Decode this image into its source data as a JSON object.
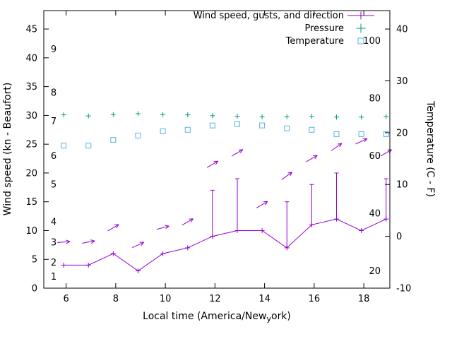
{
  "legend": {
    "wind": "Wind speed, gusts, and direction",
    "pressure": "Pressure",
    "temperature": "Temperature"
  },
  "axes": {
    "x_label_parts": [
      "Local time (America/New",
      "y",
      "ork)"
    ],
    "y_left_label": "Wind speed (kn - Beaufort)",
    "y_right_label": "Temperature (C - F)",
    "x_ticks": [
      6,
      8,
      10,
      12,
      14,
      16,
      18
    ],
    "y_left_ticks": [
      0,
      5,
      10,
      15,
      20,
      25,
      30,
      35,
      40,
      45
    ],
    "y_right_ticks_c": [
      -10,
      0,
      10,
      20,
      30,
      40
    ],
    "beaufort_labels": [
      {
        "label": "1",
        "kn": 2
      },
      {
        "label": "2",
        "kn": 4.5
      },
      {
        "label": "3",
        "kn": 8
      },
      {
        "label": "4",
        "kn": 11.5
      },
      {
        "label": "5",
        "kn": 18
      },
      {
        "label": "6",
        "kn": 23
      },
      {
        "label": "7",
        "kn": 29
      },
      {
        "label": "8",
        "kn": 34
      },
      {
        "label": "9",
        "kn": 41.5
      }
    ],
    "fahrenheit_labels": [
      {
        "label": "20",
        "kn": 3
      },
      {
        "label": "40",
        "kn": 13
      },
      {
        "label": "60",
        "kn": 23
      },
      {
        "label": "80",
        "kn": 33
      },
      {
        "label": "100",
        "kn": 43
      }
    ]
  },
  "chart_data": {
    "type": "line",
    "title": "",
    "xlabel": "Local time (America/New_york)",
    "ylabel_left": "Wind speed (kn - Beaufort)",
    "ylabel_right": "Temperature (C - F)",
    "xlim": [
      5.1,
      19.05
    ],
    "ylim_kn": [
      0,
      48.2
    ],
    "x_hours": [
      5.9,
      6.9,
      7.9,
      8.9,
      9.9,
      10.9,
      11.9,
      12.9,
      13.9,
      14.9,
      15.9,
      16.9,
      17.9,
      18.9
    ],
    "series": [
      {
        "name": "Wind speed, gusts, and direction",
        "color": "#9400d3",
        "speed_kn": [
          4,
          4,
          6,
          3,
          6,
          7,
          9,
          10,
          10,
          7,
          11,
          12,
          10,
          12
        ],
        "gust_kn": [
          4,
          4,
          6,
          3,
          6,
          7,
          17,
          19,
          10,
          15,
          18,
          20,
          10,
          19
        ]
      },
      {
        "name": "Pressure",
        "color": "#009e73",
        "values_kn_scale": [
          30.1,
          29.9,
          30.15,
          30.3,
          30.15,
          30.1,
          29.95,
          29.85,
          29.75,
          29.75,
          29.85,
          29.7,
          29.7,
          29.8
        ]
      },
      {
        "name": "Temperature",
        "color": "#56b4e9",
        "values_f": [
          63.5,
          63.5,
          65.5,
          67,
          68.5,
          69,
          70.5,
          71,
          70.5,
          69.5,
          69,
          67.5,
          67.5,
          67.5
        ]
      }
    ],
    "wind_direction_arrows": [
      {
        "x": 5.9,
        "kn": 8,
        "angle_deg": 5
      },
      {
        "x": 6.9,
        "kn": 8,
        "angle_deg": 10
      },
      {
        "x": 7.9,
        "kn": 10.5,
        "angle_deg": 30
      },
      {
        "x": 8.9,
        "kn": 7.5,
        "angle_deg": 25
      },
      {
        "x": 9.9,
        "kn": 10.5,
        "angle_deg": 15
      },
      {
        "x": 10.9,
        "kn": 11.5,
        "angle_deg": 30
      },
      {
        "x": 11.9,
        "kn": 21.5,
        "angle_deg": 30
      },
      {
        "x": 12.9,
        "kn": 23.5,
        "angle_deg": 30
      },
      {
        "x": 13.9,
        "kn": 14.5,
        "angle_deg": 30
      },
      {
        "x": 14.9,
        "kn": 19.5,
        "angle_deg": 35
      },
      {
        "x": 15.9,
        "kn": 22.5,
        "angle_deg": 30
      },
      {
        "x": 16.9,
        "kn": 24.5,
        "angle_deg": 35
      },
      {
        "x": 17.9,
        "kn": 25.5,
        "angle_deg": 25
      },
      {
        "x": 18.9,
        "kn": 23.5,
        "angle_deg": 30
      }
    ],
    "legend_position": "top-right-inside",
    "grid": false
  },
  "colors": {
    "wind": "#9400d3",
    "pressure": "#009e73",
    "temperature": "#56b4e9",
    "axis": "#000000",
    "background": "#ffffff"
  }
}
